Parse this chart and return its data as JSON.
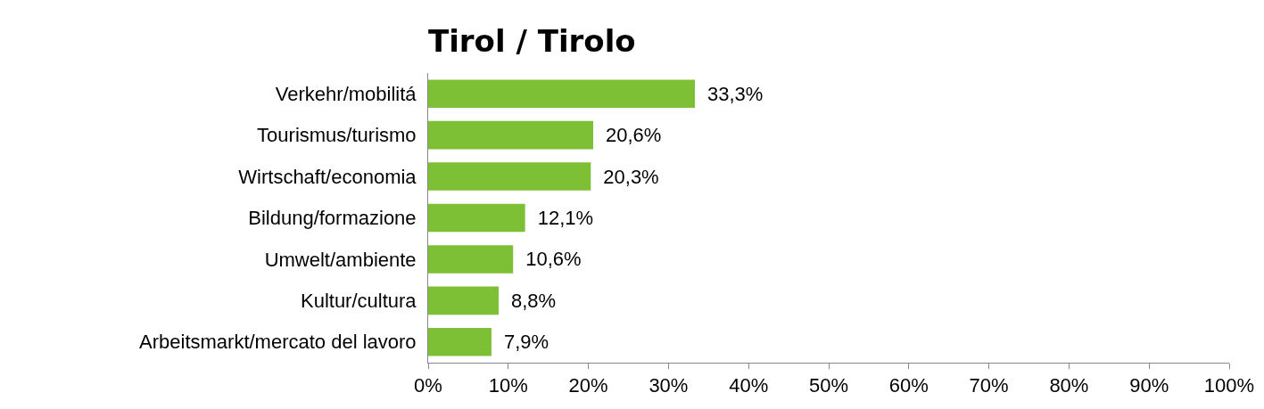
{
  "chart_data": {
    "type": "bar",
    "orientation": "horizontal",
    "title": "Tirol / Tirolo",
    "categories": [
      "Verkehr/mobilitá",
      "Tourismus/turismo",
      "Wirtschaft/economia",
      "Bildung/formazione",
      "Umwelt/ambiente",
      "Kultur/cultura",
      "Arbeitsmarkt/mercato del lavoro"
    ],
    "values": [
      33.3,
      20.6,
      20.3,
      12.1,
      10.6,
      8.8,
      7.9
    ],
    "value_labels": [
      "33,3%",
      "20,6%",
      "20,3%",
      "12,1%",
      "10,6%",
      "8,8%",
      "7,9%"
    ],
    "color": "#7dbf35",
    "xlim": [
      0,
      100
    ],
    "xticks": [
      {
        "value": 0,
        "label": "0%"
      },
      {
        "value": 10,
        "label": "10%"
      },
      {
        "value": 20,
        "label": "20%"
      },
      {
        "value": 30,
        "label": "30%"
      },
      {
        "value": 40,
        "label": "40%"
      },
      {
        "value": 50,
        "label": "50%"
      },
      {
        "value": 60,
        "label": "60%"
      },
      {
        "value": 70,
        "label": "70%"
      },
      {
        "value": 80,
        "label": "80%"
      },
      {
        "value": 90,
        "label": "90%"
      },
      {
        "value": 100,
        "label": "100%"
      }
    ],
    "grid": false
  }
}
